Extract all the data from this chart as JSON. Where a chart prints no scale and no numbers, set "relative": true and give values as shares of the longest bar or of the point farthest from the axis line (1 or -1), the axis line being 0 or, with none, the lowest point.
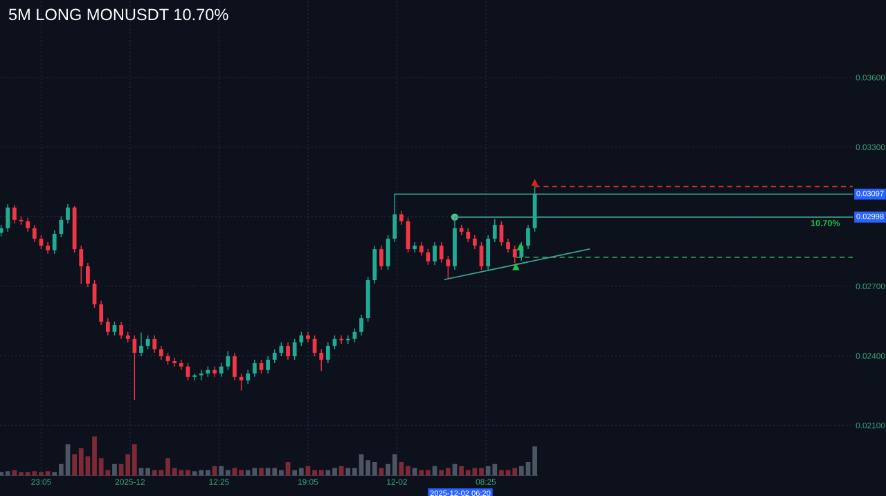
{
  "chart_data": [
    {
      "type": "candlestick",
      "title": "5M LONG MONUSDT 10.70%",
      "x": [
        "2025-11-30T20:05",
        "2025-11-30T20:35",
        "2025-11-30T21:05",
        "2025-11-30T21:35",
        "2025-11-30T22:05",
        "2025-11-30T22:35",
        "2025-11-30T23:05",
        "2025-11-30T23:35",
        "2025-12-01T00:05",
        "2025-12-01T00:35",
        "2025-12-01T01:05",
        "2025-12-01T01:35",
        "2025-12-01T02:05",
        "2025-12-01T02:35",
        "2025-12-01T03:05",
        "2025-12-01T03:35",
        "2025-12-01T04:05",
        "2025-12-01T04:35",
        "2025-12-01T05:05",
        "2025-12-01T05:35",
        "2025-12-01T06:05",
        "2025-12-01T06:35",
        "2025-12-01T07:05",
        "2025-12-01T07:35",
        "2025-12-01T08:05",
        "2025-12-01T08:35",
        "2025-12-01T09:05",
        "2025-12-01T09:35",
        "2025-12-01T10:05",
        "2025-12-01T10:35",
        "2025-12-01T11:05",
        "2025-12-01T11:35",
        "2025-12-01T12:05",
        "2025-12-01T12:35",
        "2025-12-01T13:05",
        "2025-12-01T13:35",
        "2025-12-01T14:05",
        "2025-12-01T14:35",
        "2025-12-01T15:05",
        "2025-12-01T15:35",
        "2025-12-01T16:05",
        "2025-12-01T16:35",
        "2025-12-01T17:05",
        "2025-12-01T17:35",
        "2025-12-01T18:05",
        "2025-12-01T18:35",
        "2025-12-01T19:05",
        "2025-12-01T19:35",
        "2025-12-01T20:05",
        "2025-12-01T20:35",
        "2025-12-01T21:05",
        "2025-12-01T21:35",
        "2025-12-01T22:05",
        "2025-12-01T22:35",
        "2025-12-01T23:05",
        "2025-12-01T23:35",
        "2025-12-02T00:05",
        "2025-12-02T00:35",
        "2025-12-02T01:05",
        "2025-12-02T01:35",
        "2025-12-02T02:05",
        "2025-12-02T02:35",
        "2025-12-02T03:05",
        "2025-12-02T03:35",
        "2025-12-02T04:05",
        "2025-12-02T04:35",
        "2025-12-02T05:05",
        "2025-12-02T05:35",
        "2025-12-02T06:05",
        "2025-12-02T06:35",
        "2025-12-02T07:05",
        "2025-12-02T07:35",
        "2025-12-02T08:05",
        "2025-12-02T08:35",
        "2025-12-02T09:05",
        "2025-12-02T09:35",
        "2025-12-02T10:05",
        "2025-12-02T10:35",
        "2025-12-02T11:05",
        "2025-12-02T11:35",
        "2025-12-02T12:05"
      ],
      "ohlc": [
        [
          0.0293,
          0.02965,
          0.02915,
          0.0295
        ],
        [
          0.0295,
          0.03054,
          0.02935,
          0.03039
        ],
        [
          0.03039,
          0.0305,
          0.02971,
          0.02986
        ],
        [
          0.02986,
          0.03001,
          0.02965,
          0.0298
        ],
        [
          0.0298,
          0.02995,
          0.02935,
          0.0295
        ],
        [
          0.0295,
          0.02965,
          0.0289,
          0.02905
        ],
        [
          0.02905,
          0.0292,
          0.0286,
          0.02875
        ],
        [
          0.02875,
          0.0289,
          0.0284,
          0.02855
        ],
        [
          0.02855,
          0.02941,
          0.0284,
          0.02926
        ],
        [
          0.02926,
          0.03001,
          0.02911,
          0.02986
        ],
        [
          0.02986,
          0.03054,
          0.02971,
          0.03039
        ],
        [
          0.03039,
          0.03045,
          0.02845,
          0.0286
        ],
        [
          0.0286,
          0.02875,
          0.0271,
          0.02786
        ],
        [
          0.02786,
          0.02801,
          0.02696,
          0.02711
        ],
        [
          0.02711,
          0.02726,
          0.02607,
          0.02622
        ],
        [
          0.02622,
          0.02637,
          0.02532,
          0.02547
        ],
        [
          0.02547,
          0.02562,
          0.02488,
          0.02503
        ],
        [
          0.02503,
          0.02547,
          0.02488,
          0.02532
        ],
        [
          0.02532,
          0.02547,
          0.02473,
          0.02488
        ],
        [
          0.02488,
          0.02503,
          0.02458,
          0.02473
        ],
        [
          0.02473,
          0.02488,
          0.0221,
          0.02413
        ],
        [
          0.02413,
          0.025,
          0.02398,
          0.02443
        ],
        [
          0.02443,
          0.02488,
          0.02428,
          0.02473
        ],
        [
          0.02473,
          0.02488,
          0.02413,
          0.02428
        ],
        [
          0.02428,
          0.02443,
          0.02383,
          0.02398
        ],
        [
          0.02398,
          0.02413,
          0.02362,
          0.02377
        ],
        [
          0.02377,
          0.02392,
          0.02353,
          0.02368
        ],
        [
          0.02368,
          0.02383,
          0.02339,
          0.02354
        ],
        [
          0.02354,
          0.02369,
          0.02294,
          0.02309
        ],
        [
          0.02309,
          0.02324,
          0.02294,
          0.02316
        ],
        [
          0.02316,
          0.02339,
          0.02294,
          0.02324
        ],
        [
          0.02324,
          0.02354,
          0.02309,
          0.02339
        ],
        [
          0.02339,
          0.02354,
          0.02309,
          0.02324
        ],
        [
          0.02324,
          0.02369,
          0.02309,
          0.02354
        ],
        [
          0.02354,
          0.0242,
          0.02339,
          0.02398
        ],
        [
          0.02398,
          0.02413,
          0.02294,
          0.02309
        ],
        [
          0.02309,
          0.02324,
          0.0225,
          0.02294
        ],
        [
          0.02294,
          0.02339,
          0.02279,
          0.02324
        ],
        [
          0.02324,
          0.02383,
          0.02309,
          0.02368
        ],
        [
          0.02368,
          0.02383,
          0.02324,
          0.02339
        ],
        [
          0.02339,
          0.02398,
          0.02324,
          0.02383
        ],
        [
          0.02383,
          0.02428,
          0.02368,
          0.02413
        ],
        [
          0.02413,
          0.02458,
          0.02398,
          0.02443
        ],
        [
          0.02443,
          0.02458,
          0.02383,
          0.02398
        ],
        [
          0.02398,
          0.02473,
          0.02383,
          0.02458
        ],
        [
          0.02458,
          0.02503,
          0.02443,
          0.02488
        ],
        [
          0.02488,
          0.02503,
          0.02458,
          0.02473
        ],
        [
          0.02473,
          0.02488,
          0.02398,
          0.02413
        ],
        [
          0.02413,
          0.02428,
          0.02335,
          0.02383
        ],
        [
          0.02383,
          0.02458,
          0.02368,
          0.02443
        ],
        [
          0.02443,
          0.02488,
          0.02428,
          0.02473
        ],
        [
          0.02473,
          0.02488,
          0.02452,
          0.02467
        ],
        [
          0.02467,
          0.02488,
          0.02452,
          0.02473
        ],
        [
          0.02473,
          0.02518,
          0.02458,
          0.02503
        ],
        [
          0.02503,
          0.02577,
          0.02488,
          0.02562
        ],
        [
          0.02562,
          0.02741,
          0.02547,
          0.02726
        ],
        [
          0.02726,
          0.02875,
          0.02711,
          0.0286
        ],
        [
          0.0286,
          0.02875,
          0.02771,
          0.02786
        ],
        [
          0.02786,
          0.0292,
          0.02771,
          0.02905
        ],
        [
          0.02905,
          0.03097,
          0.0289,
          0.0301
        ],
        [
          0.0301,
          0.03025,
          0.02965,
          0.0298
        ],
        [
          0.0298,
          0.02995,
          0.02845,
          0.0286
        ],
        [
          0.0286,
          0.0289,
          0.02845,
          0.02875
        ],
        [
          0.02875,
          0.0289,
          0.02831,
          0.02846
        ],
        [
          0.02846,
          0.02861,
          0.02792,
          0.02807
        ],
        [
          0.02807,
          0.0289,
          0.02792,
          0.02875
        ],
        [
          0.02875,
          0.0289,
          0.02801,
          0.02816
        ],
        [
          0.02816,
          0.02831,
          0.02729,
          0.02786
        ],
        [
          0.02786,
          0.02998,
          0.02771,
          0.0295
        ],
        [
          0.0295,
          0.02965,
          0.0292,
          0.02935
        ],
        [
          0.02935,
          0.0295,
          0.0289,
          0.02905
        ],
        [
          0.02905,
          0.0292,
          0.0286,
          0.02875
        ],
        [
          0.02875,
          0.0289,
          0.02771,
          0.02786
        ],
        [
          0.02786,
          0.0292,
          0.02771,
          0.02905
        ],
        [
          0.02905,
          0.0299,
          0.0289,
          0.02965
        ],
        [
          0.02965,
          0.0298,
          0.02875,
          0.0289
        ],
        [
          0.0289,
          0.02905,
          0.02845,
          0.0286
        ],
        [
          0.0286,
          0.02875,
          0.028,
          0.02825
        ],
        [
          0.02825,
          0.0289,
          0.0281,
          0.02875
        ],
        [
          0.02875,
          0.02965,
          0.0286,
          0.0295
        ],
        [
          0.0295,
          0.0313,
          0.02935,
          0.03097
        ]
      ],
      "colors": [
        "#22ab94",
        "#22ab94",
        "#f23645",
        "#f23645",
        "#f23645",
        "#f23645",
        "#f23645",
        "#f23645",
        "#22ab94",
        "#22ab94",
        "#22ab94",
        "#f23645",
        "#f23645",
        "#f23645",
        "#f23645",
        "#f23645",
        "#f23645",
        "#22ab94",
        "#f23645",
        "#f23645",
        "#f23645",
        "#22ab94",
        "#22ab94",
        "#f23645",
        "#f23645",
        "#f23645",
        "#f23645",
        "#f23645",
        "#f23645",
        "#22ab94",
        "#22ab94",
        "#22ab94",
        "#f23645",
        "#22ab94",
        "#22ab94",
        "#f23645",
        "#f23645",
        "#22ab94",
        "#22ab94",
        "#f23645",
        "#22ab94",
        "#22ab94",
        "#22ab94",
        "#f23645",
        "#22ab94",
        "#22ab94",
        "#f23645",
        "#f23645",
        "#f23645",
        "#22ab94",
        "#22ab94",
        "#f23645",
        "#22ab94",
        "#22ab94",
        "#22ab94",
        "#22ab94",
        "#22ab94",
        "#f23645",
        "#22ab94",
        "#22ab94",
        "#f23645",
        "#f23645",
        "#22ab94",
        "#f23645",
        "#f23645",
        "#22ab94",
        "#f23645",
        "#f23645",
        "#22ab94",
        "#f23645",
        "#f23645",
        "#f23645",
        "#f23645",
        "#22ab94",
        "#22ab94",
        "#f23645",
        "#f23645",
        "#f23645",
        "#22ab94",
        "#22ab94",
        "#22ab94"
      ],
      "series": [
        {
          "type": "line",
          "color": "#3aa58f",
          "x": [
            "2025-12-02T01:35",
            "2025-12-03T11:55"
          ],
          "values": [
            0.03097,
            0.03097
          ],
          "value_labels": [
            null,
            "0.03097"
          ]
        },
        {
          "type": "line",
          "color": "#3aa58f",
          "x": [
            "2025-12-02T06:05",
            "2025-12-03T11:55"
          ],
          "values": [
            0.02998,
            0.02998
          ],
          "value_labels": [
            null,
            "0.02998"
          ]
        },
        {
          "type": "line",
          "color": "#d32f2f",
          "line_style": "dashed",
          "x": [
            "2025-12-02T12:05",
            "2025-12-03T11:55"
          ],
          "values": [
            0.0313,
            0.0313
          ]
        },
        {
          "type": "line",
          "color": "#2e9e4e",
          "line_style": "dashed",
          "x": [
            "2025-12-02T10:40",
            "2025-12-03T11:55"
          ],
          "values": [
            0.02825,
            0.02825
          ]
        },
        {
          "type": "line",
          "color": "#3aa58f",
          "x": [
            "2025-12-02T05:20",
            "2025-12-02T16:10"
          ],
          "values": [
            0.02729,
            0.0286
          ]
        },
        {
          "type": "scatter",
          "color": "#4cc38a",
          "marker": "circle",
          "x": [
            "2025-12-02T06:05"
          ],
          "values": [
            0.02998
          ]
        },
        {
          "type": "scatter",
          "color": "#e02020",
          "marker": "triangle",
          "x": [
            "2025-12-02T12:05"
          ],
          "values": [
            0.03148
          ]
        },
        {
          "type": "scatter",
          "color": "#1fc24a",
          "marker": "triangle",
          "x": [
            "2025-12-02T10:40",
            "2025-12-02T11:00"
          ],
          "values": [
            0.02785,
            0.0287
          ]
        }
      ],
      "annotations": [
        "10.70%",
        "2025-12-02 06:20"
      ],
      "xlim": [
        "2025-11-30T20:00",
        "2025-12-03T11:55"
      ],
      "ylim": [
        0.01882,
        0.03934
      ],
      "xticks": [
        {
          "value": "2025-11-30T23:05",
          "label": "23:05"
        },
        {
          "value": "2025-12-01T05:45",
          "label": "2025-12"
        },
        {
          "value": "2025-12-01T12:25",
          "label": "12:25"
        },
        {
          "value": "2025-12-01T19:05",
          "label": "19:05"
        },
        {
          "value": "2025-12-02T01:45",
          "label": "12-02"
        },
        {
          "value": "2025-12-02T08:25",
          "label": "08:25"
        }
      ],
      "yticks": [
        {
          "value": 0.021,
          "label": "0.02100"
        },
        {
          "value": 0.024,
          "label": "0.02400"
        },
        {
          "value": 0.027,
          "label": "0.02700"
        },
        {
          "value": 0.03,
          "label": null
        },
        {
          "value": 0.033,
          "label": "0.03300"
        },
        {
          "value": 0.036,
          "label": "0.03600"
        }
      ],
      "grid": true
    },
    {
      "type": "bar",
      "relative": true,
      "categories": [
        null,
        null,
        null,
        null,
        null,
        null,
        null,
        null,
        null,
        null,
        null,
        null,
        null,
        null,
        null,
        null,
        null,
        null,
        null,
        null,
        null,
        null,
        null,
        null,
        null,
        null,
        null,
        null,
        null,
        null,
        null,
        null,
        null,
        null,
        null,
        null,
        null,
        null,
        null,
        null,
        null,
        null,
        null,
        null,
        null,
        null,
        null,
        null,
        null,
        null,
        null,
        null,
        null,
        null,
        null,
        null,
        null,
        null,
        null,
        null,
        null,
        null,
        null,
        null,
        null,
        null,
        null,
        null,
        null,
        null,
        null,
        null,
        null,
        null,
        null,
        null,
        null,
        null,
        null,
        null,
        null
      ],
      "values": [
        0.1,
        0.12,
        0.15,
        0.1,
        0.1,
        0.12,
        0.1,
        0.12,
        0.1,
        0.3,
        0.8,
        0.55,
        0.7,
        0.5,
        1.0,
        0.45,
        0.15,
        0.3,
        0.3,
        0.55,
        0.8,
        0.2,
        0.2,
        0.15,
        0.15,
        0.45,
        0.2,
        0.15,
        0.15,
        0.12,
        0.15,
        0.15,
        0.25,
        0.25,
        0.15,
        0.2,
        0.15,
        0.15,
        0.2,
        0.2,
        0.2,
        0.2,
        0.15,
        0.35,
        0.15,
        0.2,
        0.25,
        0.15,
        0.15,
        0.15,
        0.2,
        0.25,
        0.2,
        0.2,
        0.55,
        0.4,
        0.35,
        0.2,
        0.3,
        0.55,
        0.35,
        0.25,
        0.2,
        0.15,
        0.15,
        0.25,
        0.15,
        0.2,
        0.3,
        0.25,
        0.15,
        0.2,
        0.2,
        0.25,
        0.3,
        0.15,
        0.15,
        0.2,
        0.25,
        0.35,
        0.75
      ],
      "colors": [
        "#4b5563",
        "#4b5563",
        "#7d2a36",
        "#7d2a36",
        "#7d2a36",
        "#7d2a36",
        "#7d2a36",
        "#7d2a36",
        "#4b5563",
        "#4b5563",
        "#4b5563",
        "#7d2a36",
        "#7d2a36",
        "#7d2a36",
        "#7d2a36",
        "#7d2a36",
        "#7d2a36",
        "#4b5563",
        "#7d2a36",
        "#7d2a36",
        "#7d2a36",
        "#4b5563",
        "#4b5563",
        "#7d2a36",
        "#7d2a36",
        "#7d2a36",
        "#7d2a36",
        "#7d2a36",
        "#7d2a36",
        "#4b5563",
        "#4b5563",
        "#4b5563",
        "#7d2a36",
        "#4b5563",
        "#4b5563",
        "#7d2a36",
        "#7d2a36",
        "#4b5563",
        "#4b5563",
        "#7d2a36",
        "#4b5563",
        "#4b5563",
        "#4b5563",
        "#7d2a36",
        "#4b5563",
        "#4b5563",
        "#7d2a36",
        "#7d2a36",
        "#7d2a36",
        "#4b5563",
        "#4b5563",
        "#7d2a36",
        "#4b5563",
        "#4b5563",
        "#4b5563",
        "#4b5563",
        "#4b5563",
        "#7d2a36",
        "#4b5563",
        "#4b5563",
        "#7d2a36",
        "#7d2a36",
        "#4b5563",
        "#7d2a36",
        "#7d2a36",
        "#4b5563",
        "#7d2a36",
        "#7d2a36",
        "#4b5563",
        "#7d2a36",
        "#7d2a36",
        "#7d2a36",
        "#7d2a36",
        "#4b5563",
        "#4b5563",
        "#7d2a36",
        "#7d2a36",
        "#7d2a36",
        "#4b5563",
        "#4b5563",
        "#4b5563"
      ]
    }
  ]
}
